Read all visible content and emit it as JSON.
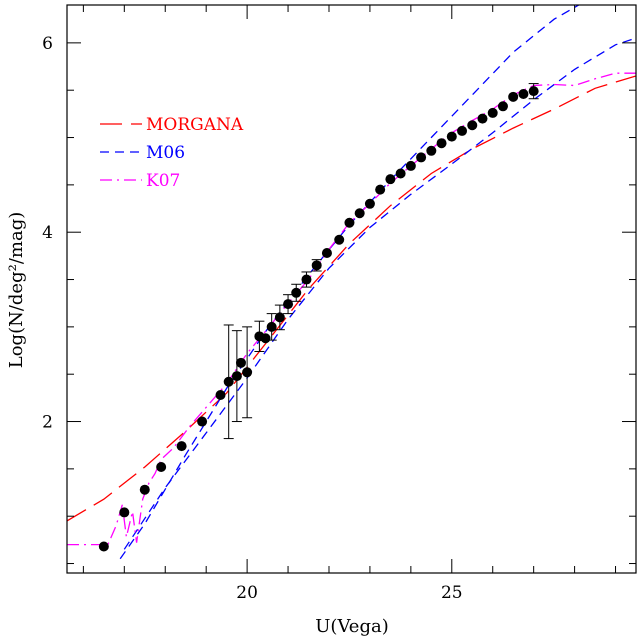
{
  "chart_data": {
    "type": "scatter",
    "title": "",
    "xlabel": "U(Vega)",
    "ylabel": "Log(N/deg²/mag)",
    "xlim": [
      15.6,
      29.5
    ],
    "ylim": [
      0.4,
      6.4
    ],
    "x_ticks": [
      20,
      25
    ],
    "y_ticks": [
      2,
      4,
      6
    ],
    "grid": false,
    "legend_placement": "top-left",
    "data_points": {
      "name": "",
      "color": "#000000",
      "points": [
        {
          "x": 16.5,
          "y": 0.68,
          "err": 0
        },
        {
          "x": 17.0,
          "y": 1.04,
          "err": 0
        },
        {
          "x": 17.5,
          "y": 1.28,
          "err": 0
        },
        {
          "x": 17.9,
          "y": 1.52,
          "err": 0
        },
        {
          "x": 18.4,
          "y": 1.74,
          "err": 0
        },
        {
          "x": 18.9,
          "y": 2.0,
          "err": 0
        },
        {
          "x": 19.35,
          "y": 2.28,
          "err": 0
        },
        {
          "x": 19.55,
          "y": 2.42,
          "err": 0.6
        },
        {
          "x": 19.75,
          "y": 2.48,
          "err": 0.48
        },
        {
          "x": 19.85,
          "y": 2.62,
          "err": 0
        },
        {
          "x": 20.0,
          "y": 2.52,
          "err": 0.48
        },
        {
          "x": 20.3,
          "y": 2.9,
          "err": 0.16
        },
        {
          "x": 20.45,
          "y": 2.88,
          "err": 0
        },
        {
          "x": 20.6,
          "y": 3.0,
          "err": 0.14
        },
        {
          "x": 20.8,
          "y": 3.1,
          "err": 0.13
        },
        {
          "x": 21.0,
          "y": 3.24,
          "err": 0.1
        },
        {
          "x": 21.2,
          "y": 3.36,
          "err": 0.09
        },
        {
          "x": 21.45,
          "y": 3.5,
          "err": 0.08
        },
        {
          "x": 21.7,
          "y": 3.65,
          "err": 0.06
        },
        {
          "x": 21.95,
          "y": 3.78,
          "err": 0.05
        },
        {
          "x": 22.25,
          "y": 3.92,
          "err": 0.04
        },
        {
          "x": 22.5,
          "y": 4.1,
          "err": 0.04
        },
        {
          "x": 22.75,
          "y": 4.2,
          "err": 0.03
        },
        {
          "x": 23.0,
          "y": 4.3,
          "err": 0.03
        },
        {
          "x": 23.25,
          "y": 4.45,
          "err": 0.03
        },
        {
          "x": 23.5,
          "y": 4.56,
          "err": 0.03
        },
        {
          "x": 23.75,
          "y": 4.62,
          "err": 0.03
        },
        {
          "x": 24.0,
          "y": 4.7,
          "err": 0.03
        },
        {
          "x": 24.25,
          "y": 4.79,
          "err": 0.03
        },
        {
          "x": 24.5,
          "y": 4.86,
          "err": 0.03
        },
        {
          "x": 24.75,
          "y": 4.94,
          "err": 0.03
        },
        {
          "x": 25.0,
          "y": 5.01,
          "err": 0.03
        },
        {
          "x": 25.25,
          "y": 5.07,
          "err": 0.03
        },
        {
          "x": 25.5,
          "y": 5.13,
          "err": 0.03
        },
        {
          "x": 25.75,
          "y": 5.2,
          "err": 0.03
        },
        {
          "x": 26.0,
          "y": 5.26,
          "err": 0.03
        },
        {
          "x": 26.25,
          "y": 5.33,
          "err": 0.03
        },
        {
          "x": 26.5,
          "y": 5.43,
          "err": 0.04
        },
        {
          "x": 26.75,
          "y": 5.46,
          "err": 0.05
        },
        {
          "x": 27.0,
          "y": 5.49,
          "err": 0.08
        }
      ]
    },
    "series": [
      {
        "name": "MORGANA",
        "color": "#ff0000",
        "style": "long-dash",
        "points": [
          [
            15.6,
            0.95
          ],
          [
            16.5,
            1.18
          ],
          [
            17.5,
            1.52
          ],
          [
            18.5,
            1.9
          ],
          [
            19.5,
            2.3
          ],
          [
            20.5,
            2.85
          ],
          [
            21.5,
            3.4
          ],
          [
            22.5,
            3.88
          ],
          [
            23.5,
            4.28
          ],
          [
            24.5,
            4.62
          ],
          [
            25.5,
            4.88
          ],
          [
            26.5,
            5.1
          ],
          [
            27.5,
            5.3
          ],
          [
            28.5,
            5.52
          ],
          [
            29.5,
            5.65
          ]
        ]
      },
      {
        "name": "M06",
        "color": "#0000ff",
        "style": "dash",
        "lines": [
          [
            [
              16.9,
              0.55
            ],
            [
              17.5,
              0.92
            ],
            [
              18.5,
              1.65
            ],
            [
              19.5,
              2.35
            ],
            [
              20.5,
              2.98
            ],
            [
              21.5,
              3.55
            ],
            [
              22.5,
              4.08
            ],
            [
              23.5,
              4.55
            ],
            [
              24.5,
              5.0
            ],
            [
              25.5,
              5.45
            ],
            [
              26.5,
              5.9
            ],
            [
              27.5,
              6.25
            ],
            [
              28.5,
              6.5
            ]
          ],
          [
            [
              17.0,
              0.65
            ],
            [
              18.0,
              1.3
            ],
            [
              19.0,
              1.88
            ],
            [
              20.0,
              2.46
            ],
            [
              21.0,
              3.08
            ],
            [
              22.0,
              3.62
            ],
            [
              23.0,
              4.05
            ],
            [
              24.0,
              4.4
            ],
            [
              25.0,
              4.72
            ],
            [
              26.0,
              5.05
            ],
            [
              27.0,
              5.4
            ],
            [
              28.0,
              5.72
            ],
            [
              29.0,
              5.98
            ],
            [
              29.5,
              6.05
            ]
          ]
        ]
      },
      {
        "name": "K07",
        "color": "#ff00ff",
        "style": "dash-dot",
        "points": [
          [
            15.6,
            0.7
          ],
          [
            16.6,
            0.7
          ],
          [
            16.8,
            0.9
          ],
          [
            16.95,
            1.12
          ],
          [
            17.05,
            0.78
          ],
          [
            17.2,
            1.05
          ],
          [
            17.3,
            0.72
          ],
          [
            17.45,
            1.18
          ],
          [
            17.6,
            1.35
          ],
          [
            17.75,
            1.45
          ],
          [
            17.9,
            1.6
          ],
          [
            18.2,
            1.72
          ],
          [
            18.6,
            1.95
          ],
          [
            19.0,
            2.15
          ],
          [
            19.5,
            2.4
          ],
          [
            20.0,
            2.72
          ],
          [
            20.5,
            2.98
          ],
          [
            21.0,
            3.25
          ],
          [
            21.5,
            3.5
          ],
          [
            22.0,
            3.82
          ],
          [
            22.5,
            4.1
          ],
          [
            23.0,
            4.3
          ],
          [
            23.5,
            4.52
          ],
          [
            24.0,
            4.7
          ],
          [
            24.5,
            4.88
          ],
          [
            25.0,
            5.05
          ],
          [
            25.5,
            5.18
          ],
          [
            26.0,
            5.3
          ],
          [
            26.5,
            5.45
          ],
          [
            27.0,
            5.55
          ],
          [
            27.5,
            5.56
          ],
          [
            28.0,
            5.55
          ],
          [
            28.5,
            5.62
          ],
          [
            29.0,
            5.68
          ],
          [
            29.5,
            5.68
          ]
        ]
      }
    ]
  }
}
